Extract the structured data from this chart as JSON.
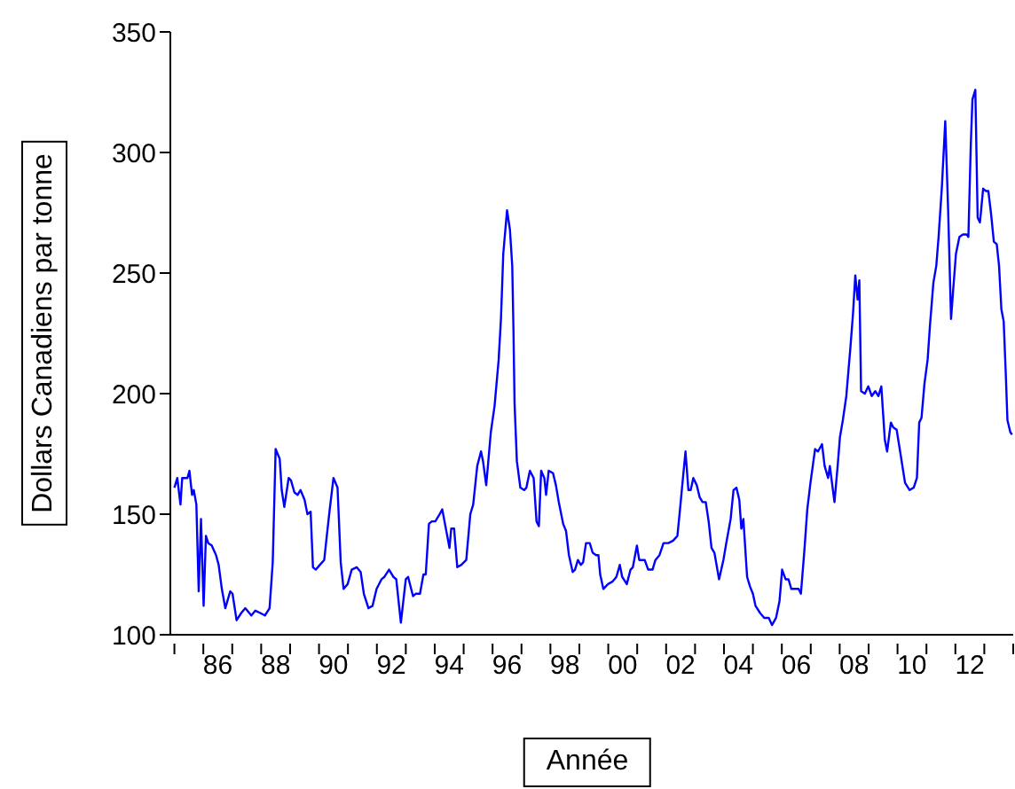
{
  "chart_data": {
    "type": "line",
    "xlabel": "Année",
    "ylabel": "Dollars Canadiens par tonne",
    "xlim": [
      1984.36,
      2013.5
    ],
    "ylim": [
      100,
      350
    ],
    "yticks": [
      100,
      150,
      200,
      250,
      300,
      350
    ],
    "xticks": [
      {
        "value": 1984.5,
        "label": null
      },
      {
        "value": 1985.5,
        "label": null
      },
      {
        "value": 1986,
        "label": "86"
      },
      {
        "value": 1986.5,
        "label": null
      },
      {
        "value": 1987.5,
        "label": null
      },
      {
        "value": 1988,
        "label": "88"
      },
      {
        "value": 1988.5,
        "label": null
      },
      {
        "value": 1989.5,
        "label": null
      },
      {
        "value": 1990,
        "label": "90"
      },
      {
        "value": 1990.5,
        "label": null
      },
      {
        "value": 1991.5,
        "label": null
      },
      {
        "value": 1992,
        "label": "92"
      },
      {
        "value": 1992.5,
        "label": null
      },
      {
        "value": 1993.5,
        "label": null
      },
      {
        "value": 1994,
        "label": "94"
      },
      {
        "value": 1994.5,
        "label": null
      },
      {
        "value": 1995.5,
        "label": null
      },
      {
        "value": 1996,
        "label": "96"
      },
      {
        "value": 1996.5,
        "label": null
      },
      {
        "value": 1997.5,
        "label": null
      },
      {
        "value": 1998,
        "label": "98"
      },
      {
        "value": 1998.5,
        "label": null
      },
      {
        "value": 1999.5,
        "label": null
      },
      {
        "value": 2000,
        "label": "00"
      },
      {
        "value": 2000.5,
        "label": null
      },
      {
        "value": 2001.5,
        "label": null
      },
      {
        "value": 2002,
        "label": "02"
      },
      {
        "value": 2002.5,
        "label": null
      },
      {
        "value": 2003.5,
        "label": null
      },
      {
        "value": 2004,
        "label": "04"
      },
      {
        "value": 2004.5,
        "label": null
      },
      {
        "value": 2005.5,
        "label": null
      },
      {
        "value": 2006,
        "label": "06"
      },
      {
        "value": 2006.5,
        "label": null
      },
      {
        "value": 2007.5,
        "label": null
      },
      {
        "value": 2008,
        "label": "08"
      },
      {
        "value": 2008.5,
        "label": null
      },
      {
        "value": 2009.5,
        "label": null
      },
      {
        "value": 2010,
        "label": "10"
      },
      {
        "value": 2010.5,
        "label": null
      },
      {
        "value": 2011.5,
        "label": null
      },
      {
        "value": 2012,
        "label": "12"
      },
      {
        "value": 2012.5,
        "label": null
      },
      {
        "value": 2013.5,
        "label": null
      }
    ],
    "grid": false,
    "x": [
      1984.5,
      1984.6,
      1984.71,
      1984.77,
      1984.95,
      1985.02,
      1985.11,
      1985.17,
      1985.26,
      1985.34,
      1985.42,
      1985.51,
      1985.59,
      1985.67,
      1985.79,
      1985.94,
      1986.03,
      1986.14,
      1986.26,
      1986.43,
      1986.51,
      1986.65,
      1986.81,
      1986.95,
      1987.16,
      1987.3,
      1987.47,
      1987.63,
      1987.79,
      1987.9,
      1988.0,
      1988.14,
      1988.21,
      1988.3,
      1988.45,
      1988.53,
      1988.65,
      1988.76,
      1988.86,
      1989.0,
      1989.1,
      1989.21,
      1989.29,
      1989.39,
      1989.53,
      1989.68,
      1989.76,
      1989.87,
      1990.0,
      1990.14,
      1990.25,
      1990.35,
      1990.49,
      1990.63,
      1990.8,
      1990.94,
      1991.05,
      1991.21,
      1991.35,
      1991.49,
      1991.66,
      1991.76,
      1991.92,
      1992.07,
      1992.17,
      1992.33,
      1992.5,
      1992.58,
      1992.75,
      1992.84,
      1992.99,
      1993.11,
      1993.19,
      1993.3,
      1993.4,
      1993.52,
      1993.67,
      1993.76,
      1993.87,
      1994.01,
      1994.07,
      1994.17,
      1994.28,
      1994.42,
      1994.59,
      1994.73,
      1994.83,
      1994.97,
      1995.1,
      1995.17,
      1995.28,
      1995.44,
      1995.57,
      1995.71,
      1995.79,
      1995.87,
      1996.0,
      1996.1,
      1996.18,
      1996.22,
      1996.26,
      1996.34,
      1996.46,
      1996.59,
      1996.67,
      1996.79,
      1996.92,
      1997.02,
      1997.1,
      1997.18,
      1997.29,
      1997.35,
      1997.44,
      1997.59,
      1997.69,
      1997.79,
      1997.94,
      1998.04,
      1998.14,
      1998.27,
      1998.35,
      1998.45,
      1998.55,
      1998.63,
      1998.73,
      1998.86,
      1998.96,
      1999.08,
      1999.16,
      1999.22,
      1999.33,
      1999.49,
      1999.64,
      1999.78,
      1999.9,
      1999.98,
      2000.14,
      2000.27,
      2000.35,
      2000.49,
      2000.57,
      2000.68,
      2000.76,
      2000.88,
      2001.03,
      2001.13,
      2001.27,
      2001.41,
      2001.58,
      2001.74,
      2001.89,
      2001.98,
      2002.09,
      2002.17,
      2002.27,
      2002.35,
      2002.44,
      2002.56,
      2002.66,
      2002.76,
      2002.87,
      2002.97,
      2003.07,
      2003.17,
      2003.33,
      2003.48,
      2003.58,
      2003.73,
      2003.83,
      2003.93,
      2004.03,
      2004.1,
      2004.17,
      2004.3,
      2004.4,
      2004.5,
      2004.59,
      2004.75,
      2004.89,
      2005.05,
      2005.16,
      2005.3,
      2005.42,
      2005.51,
      2005.63,
      2005.73,
      2005.83,
      2005.97,
      2006.08,
      2006.16,
      2006.28,
      2006.38,
      2006.49,
      2006.65,
      2006.75,
      2006.89,
      2006.98,
      2007.1,
      2007.16,
      2007.32,
      2007.43,
      2007.51,
      2007.61,
      2007.73,
      2007.87,
      2007.96,
      2008.04,
      2008.12,
      2008.18,
      2008.24,
      2008.37,
      2008.49,
      2008.61,
      2008.73,
      2008.84,
      2008.94,
      2009.06,
      2009.14,
      2009.27,
      2009.35,
      2009.47,
      2009.59,
      2009.76,
      2009.92,
      2010.06,
      2010.17,
      2010.25,
      2010.33,
      2010.43,
      2010.54,
      2010.62,
      2010.74,
      2010.84,
      2010.92,
      2011.03,
      2011.15,
      2011.25,
      2011.35,
      2011.43,
      2011.52,
      2011.64,
      2011.76,
      2011.89,
      2011.95,
      2012.03,
      2012.09,
      2012.19,
      2012.27,
      2012.35,
      2012.46,
      2012.56,
      2012.64,
      2012.73,
      2012.83,
      2012.93,
      2013.01,
      2013.09,
      2013.17,
      2013.24,
      2013.3,
      2013.4,
      2013.46
    ],
    "series": [
      {
        "color": "#0000ff",
        "values": [
          161,
          165,
          154,
          165,
          165,
          168,
          158,
          160,
          154,
          118,
          148,
          112,
          141,
          138,
          137,
          133,
          129,
          119,
          111,
          118,
          117,
          106,
          109,
          111,
          108,
          110,
          109,
          108,
          111,
          130,
          177,
          173,
          160,
          153,
          165,
          164,
          159,
          158,
          160,
          156,
          150,
          151,
          128,
          127,
          129,
          131,
          140,
          152,
          165,
          161,
          130,
          119,
          121,
          127,
          128,
          126,
          117,
          111,
          112,
          119,
          123,
          124,
          127,
          124,
          123,
          105,
          123,
          124,
          116,
          117,
          117,
          125,
          125,
          146,
          147,
          147,
          150,
          152,
          145,
          136,
          144,
          144,
          128,
          129,
          131,
          150,
          154,
          170,
          176,
          172,
          162,
          184,
          195,
          214,
          231,
          258,
          276,
          268,
          253,
          228,
          196,
          172,
          161,
          160,
          161,
          168,
          165,
          147,
          145,
          168,
          165,
          158,
          168,
          167,
          162,
          155,
          146,
          143,
          133,
          126,
          127,
          131,
          129,
          130,
          138,
          138,
          134,
          133,
          133,
          125,
          119,
          121,
          122,
          124,
          129,
          124,
          121,
          127,
          128,
          137,
          131,
          131,
          131,
          127,
          127,
          131,
          133,
          138,
          138,
          139,
          141,
          152,
          166,
          176,
          160,
          160,
          165,
          162,
          157,
          155,
          155,
          147,
          136,
          134,
          123,
          131,
          138,
          148,
          160,
          161,
          156,
          144,
          148,
          124,
          120,
          117,
          112,
          109,
          107,
          107,
          104,
          107,
          114,
          127,
          123,
          123,
          119,
          119,
          119,
          117,
          135,
          152,
          163,
          177,
          176,
          179,
          170,
          165,
          170,
          155,
          170,
          182,
          189,
          199,
          219,
          233,
          249,
          239,
          247,
          201,
          200,
          203,
          199,
          201,
          199,
          203,
          181,
          176,
          188,
          186,
          185,
          176,
          163,
          160,
          161,
          165,
          188,
          190,
          204,
          214,
          228,
          246,
          253,
          265,
          285,
          313,
          276,
          231,
          244,
          258,
          265,
          266,
          266,
          265,
          302,
          322,
          326,
          273,
          271,
          285,
          284,
          284,
          275,
          263,
          262,
          253,
          235,
          230,
          209,
          189,
          184,
          183
        ]
      }
    ]
  }
}
